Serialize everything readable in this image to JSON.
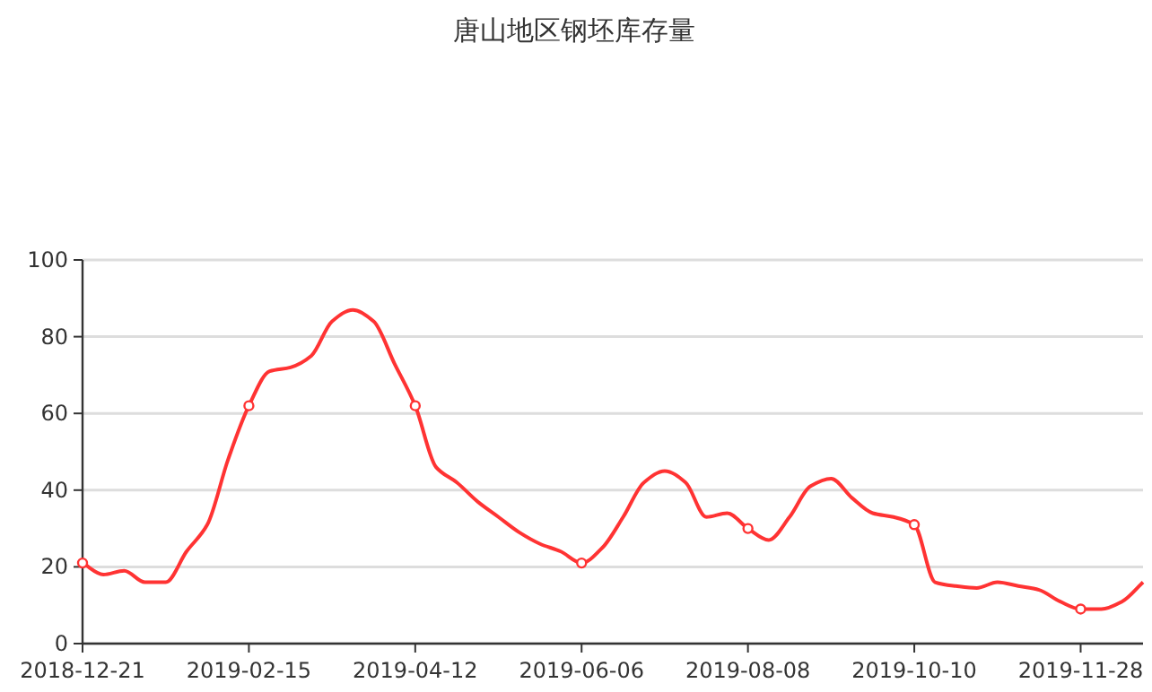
{
  "chart_data": {
    "type": "line",
    "title": "唐山地区钢坯库存量",
    "categories": [
      "2018-12-21",
      null,
      null,
      null,
      null,
      null,
      null,
      null,
      "2019-02-15",
      null,
      null,
      null,
      null,
      null,
      null,
      null,
      "2019-04-12",
      null,
      null,
      null,
      null,
      null,
      null,
      null,
      "2019-06-06",
      null,
      null,
      null,
      null,
      null,
      null,
      null,
      "2019-08-08",
      null,
      null,
      null,
      null,
      null,
      null,
      null,
      "2019-10-10",
      null,
      null,
      null,
      null,
      null,
      null,
      null,
      "2019-11-28",
      null,
      null,
      null
    ],
    "series": [
      {
        "color": "#ff3333",
        "values": [
          21,
          18,
          19,
          16,
          16,
          24,
          31,
          48,
          62,
          71,
          72,
          75,
          84,
          87,
          84,
          73,
          62,
          46,
          42,
          37,
          33,
          29,
          26,
          24,
          21,
          25,
          33,
          42,
          45,
          42,
          33,
          34,
          30,
          27,
          33,
          41,
          43,
          38,
          34,
          33,
          31,
          16,
          15,
          14.5,
          16,
          15,
          14,
          11,
          9,
          9,
          11,
          16
        ]
      },
      {
        "type": "scatter",
        "color": "#ff3333",
        "marker": "circle",
        "values": [
          21,
          null,
          null,
          null,
          null,
          null,
          null,
          null,
          62,
          null,
          null,
          null,
          null,
          null,
          null,
          null,
          62,
          null,
          null,
          null,
          null,
          null,
          null,
          null,
          21,
          null,
          null,
          null,
          null,
          null,
          null,
          null,
          30,
          null,
          null,
          null,
          null,
          null,
          null,
          null,
          31,
          null,
          null,
          null,
          null,
          null,
          null,
          null,
          9,
          null,
          null,
          null
        ]
      }
    ],
    "ylim": [
      0,
      100
    ],
    "yticks": [
      0,
      20,
      40,
      60,
      80,
      100
    ],
    "grid": "y",
    "marker": "none"
  }
}
